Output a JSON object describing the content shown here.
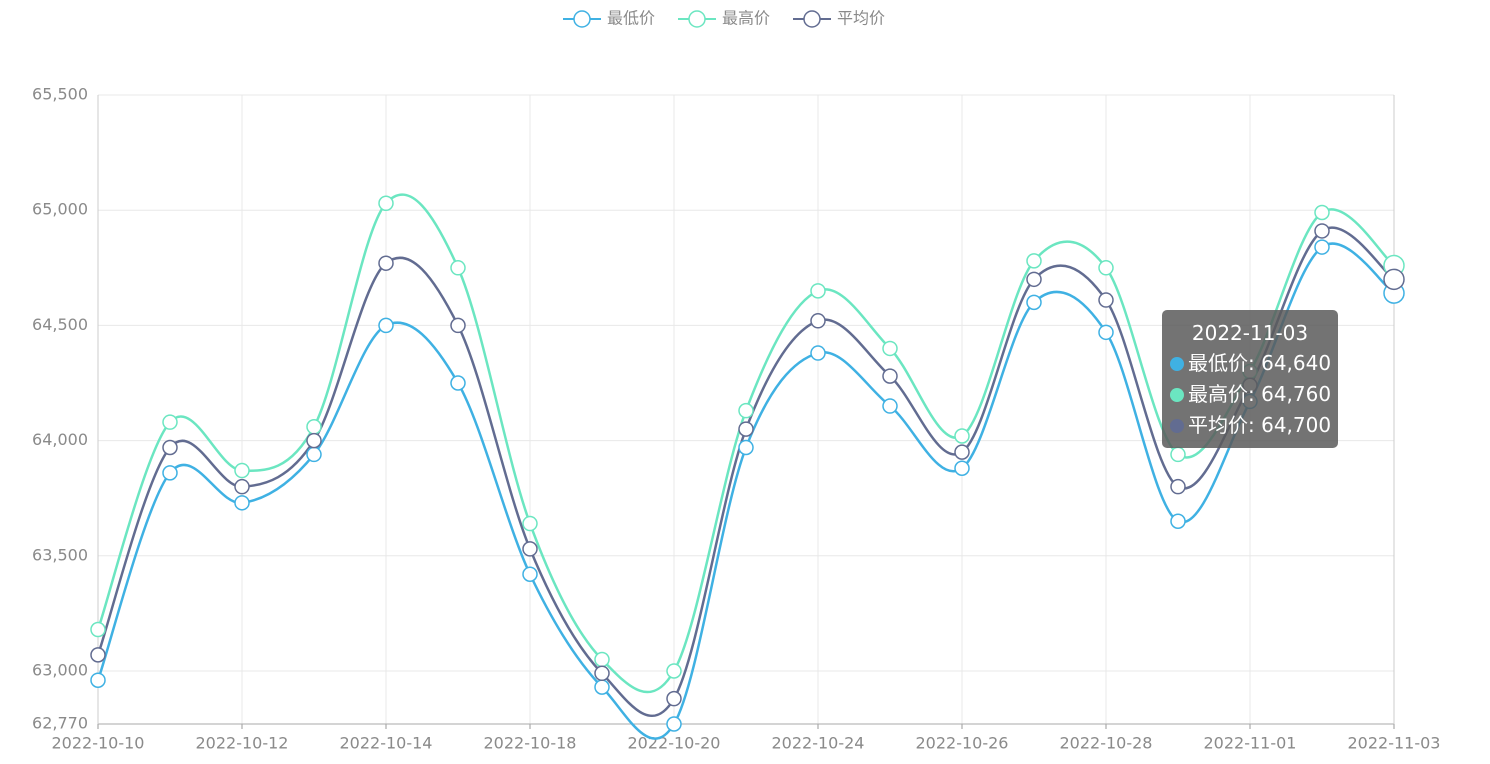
{
  "chart_data": {
    "type": "line",
    "smooth": true,
    "grid": true,
    "categories": [
      "2022-10-10",
      null,
      "2022-10-12",
      null,
      "2022-10-14",
      null,
      "2022-10-18",
      null,
      "2022-10-20",
      null,
      "2022-10-24",
      null,
      "2022-10-26",
      null,
      "2022-10-28",
      null,
      "2022-11-01",
      null,
      "2022-11-03"
    ],
    "ylim": [
      62770,
      65500
    ],
    "yticks": [
      {
        "value": 62770,
        "label": "62,770"
      },
      {
        "value": 63000,
        "label": "63,000"
      },
      {
        "value": 63500,
        "label": "63,500"
      },
      {
        "value": 64000,
        "label": "64,000"
      },
      {
        "value": 64500,
        "label": "64,500"
      },
      {
        "value": 65000,
        "label": "65,000"
      },
      {
        "value": 65500,
        "label": "65,500"
      }
    ],
    "series": [
      {
        "name": "最低价",
        "color": "#3fb1e3",
        "values": [
          62960,
          63860,
          63730,
          63940,
          64500,
          64250,
          63420,
          62930,
          62770,
          63970,
          64380,
          64150,
          63880,
          64600,
          64470,
          63650,
          64170,
          64840,
          64640
        ]
      },
      {
        "name": "最高价",
        "color": "#6be6c1",
        "values": [
          63180,
          64080,
          63870,
          64060,
          65030,
          64750,
          63640,
          63050,
          63000,
          64130,
          64650,
          64400,
          64020,
          64780,
          64750,
          63940,
          64300,
          64990,
          64760
        ]
      },
      {
        "name": "平均价",
        "color": "#626c91",
        "values": [
          63070,
          63970,
          63800,
          64000,
          64770,
          64500,
          63530,
          62990,
          62880,
          64050,
          64520,
          64280,
          63950,
          64700,
          64610,
          63800,
          64240,
          64910,
          64700
        ]
      }
    ]
  },
  "tooltip": {
    "title": "2022-11-03",
    "rows": [
      "最低价: 64,640",
      "最高价: 64,760",
      "平均价: 64,700"
    ]
  }
}
